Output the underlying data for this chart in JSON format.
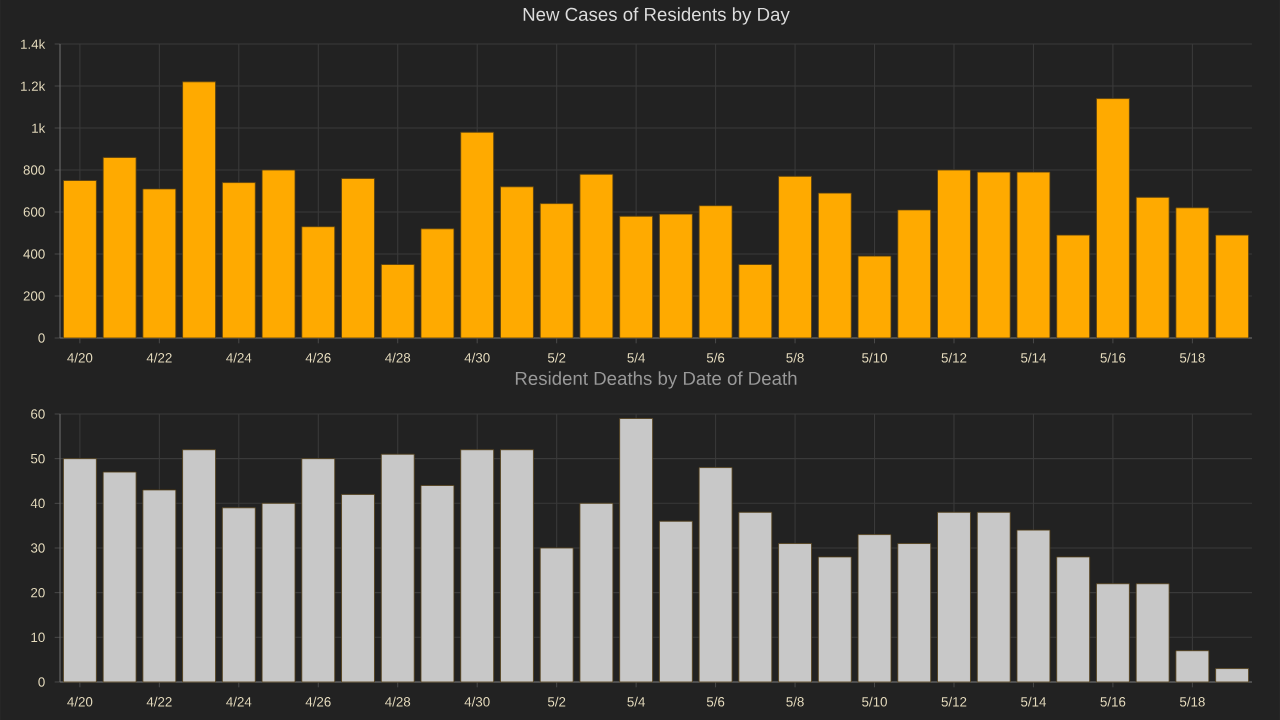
{
  "chart_data": [
    {
      "type": "bar",
      "title": "New Cases of Residents by Day",
      "categories": [
        "4/20",
        null,
        "4/22",
        null,
        "4/24",
        null,
        "4/26",
        null,
        "4/28",
        null,
        "4/30",
        null,
        "5/2",
        null,
        "5/4",
        null,
        "5/6",
        null,
        "5/8",
        null,
        "5/10",
        null,
        "5/12",
        null,
        "5/14",
        null,
        "5/16",
        null,
        "5/18",
        null
      ],
      "values": [
        750,
        860,
        710,
        1220,
        740,
        800,
        530,
        760,
        350,
        520,
        980,
        720,
        640,
        780,
        580,
        590,
        630,
        350,
        770,
        690,
        390,
        610,
        800,
        790,
        790,
        490,
        1140,
        670,
        620,
        490
      ],
      "color": "#ffaa00",
      "ylim": [
        0,
        1400
      ],
      "yticks": [
        0,
        200,
        400,
        600,
        800,
        {
          "value": 1000,
          "label": "1k"
        },
        {
          "value": 1200,
          "label": "1.2k"
        },
        {
          "value": 1400,
          "label": "1.4k"
        }
      ],
      "grid": true
    },
    {
      "type": "bar",
      "title": "Resident Deaths by Date of Death",
      "categories": [
        "4/20",
        null,
        "4/22",
        null,
        "4/24",
        null,
        "4/26",
        null,
        "4/28",
        null,
        "4/30",
        null,
        "5/2",
        null,
        "5/4",
        null,
        "5/6",
        null,
        "5/8",
        null,
        "5/10",
        null,
        "5/12",
        null,
        "5/14",
        null,
        "5/16",
        null,
        "5/18",
        null
      ],
      "values": [
        50,
        47,
        43,
        52,
        39,
        40,
        50,
        42,
        51,
        44,
        52,
        52,
        30,
        40,
        59,
        36,
        48,
        38,
        31,
        28,
        33,
        31,
        38,
        38,
        34,
        28,
        22,
        22,
        7,
        3
      ],
      "color": "#c8c8c8",
      "ylim": [
        0,
        60
      ],
      "yticks": [
        0,
        10,
        20,
        30,
        40,
        50,
        60
      ],
      "grid": true
    }
  ]
}
